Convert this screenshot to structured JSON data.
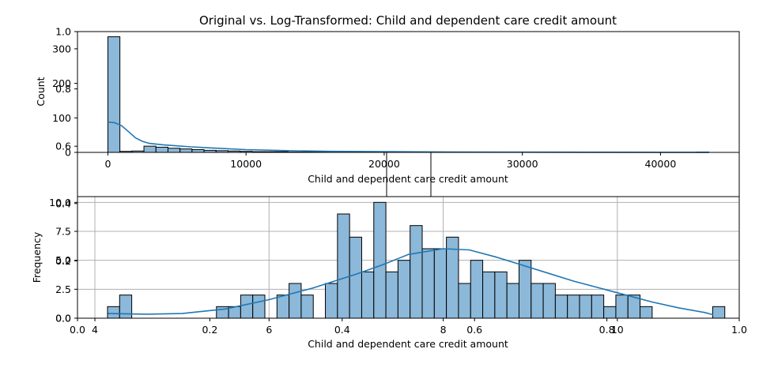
{
  "title": "Original vs. Log-Transformed: Child and dependent care credit amount",
  "colors": {
    "bar_fill": "#8cb8d9",
    "bar_edge": "#000000",
    "kde": "#1f77b4",
    "grid": "#b0b0b0"
  },
  "background_axes": {
    "x_ticks": [
      "0.0",
      "0.2",
      "0.4",
      "0.6",
      "0.8",
      "1.0"
    ],
    "y_ticks": [
      "0.0",
      "0.2",
      "0.4",
      "0.6",
      "0.8",
      "1.0"
    ]
  },
  "chart_data": [
    {
      "type": "bar",
      "subtype": "histogram",
      "xlabel": "Child and dependent care credit amount",
      "ylabel": "Count",
      "xlim": [
        -2200,
        45700
      ],
      "ylim": [
        0,
        350
      ],
      "x_ticks": [
        0,
        10000,
        20000,
        30000,
        40000
      ],
      "y_ticks": [
        0,
        100,
        200,
        300
      ],
      "grid": false,
      "bin_start": 0,
      "bin_width": 870,
      "values": [
        335,
        3,
        4,
        18,
        15,
        12,
        10,
        8,
        6,
        5,
        4,
        3,
        2,
        2,
        2,
        1,
        1,
        1,
        1,
        1,
        1,
        1,
        0,
        1,
        0,
        1,
        0,
        0,
        0,
        0,
        0,
        0,
        0,
        0,
        0,
        0,
        0,
        0,
        0,
        0,
        0,
        0,
        0,
        0,
        0,
        0,
        0,
        0,
        0,
        1
      ],
      "kde": {
        "x": [
          0,
          500,
          1000,
          1500,
          2000,
          2500,
          3000,
          4000,
          5000,
          6000,
          8000,
          10000,
          13000,
          16000,
          20000,
          25000,
          30000,
          35000,
          40000,
          43500
        ],
        "y": [
          88,
          86,
          77,
          60,
          42,
          32,
          26,
          22,
          19,
          16,
          12,
          8,
          5,
          3,
          2,
          1.2,
          0.8,
          0.5,
          0.3,
          0.2
        ]
      }
    },
    {
      "type": "bar",
      "subtype": "histogram",
      "xlabel": "Child and dependent care credit amount",
      "ylabel": "Frequency",
      "xlim": [
        3.8,
        11.4
      ],
      "ylim": [
        0,
        10.5
      ],
      "x_ticks": [
        4,
        6,
        8,
        10
      ],
      "y_ticks": [
        "0.0",
        "2.5",
        "5.0",
        "7.5",
        "10.0"
      ],
      "grid": true,
      "bin_start": 4.145,
      "bin_width": 0.139,
      "values": [
        1,
        2,
        0,
        0,
        0,
        0,
        0,
        0,
        0,
        1,
        1,
        2,
        2,
        0,
        2,
        3,
        2,
        0,
        3,
        9,
        7,
        4,
        10,
        4,
        5,
        8,
        6,
        6,
        7,
        3,
        5,
        4,
        4,
        3,
        5,
        3,
        3,
        2,
        2,
        2,
        2,
        1,
        2,
        2,
        1,
        0,
        0,
        0,
        0,
        0,
        1
      ],
      "kde": {
        "x": [
          4.15,
          4.6,
          5.0,
          5.5,
          6.0,
          6.5,
          7.0,
          7.3,
          7.6,
          8.0,
          8.3,
          8.6,
          8.9,
          9.2,
          9.5,
          9.8,
          10.1,
          10.4,
          10.7,
          11.0,
          11.1
        ],
        "y": [
          0.4,
          0.35,
          0.4,
          0.8,
          1.6,
          2.6,
          3.8,
          4.6,
          5.5,
          6.0,
          5.9,
          5.3,
          4.6,
          3.9,
          3.2,
          2.6,
          2.0,
          1.4,
          0.9,
          0.5,
          0.3
        ]
      }
    }
  ]
}
